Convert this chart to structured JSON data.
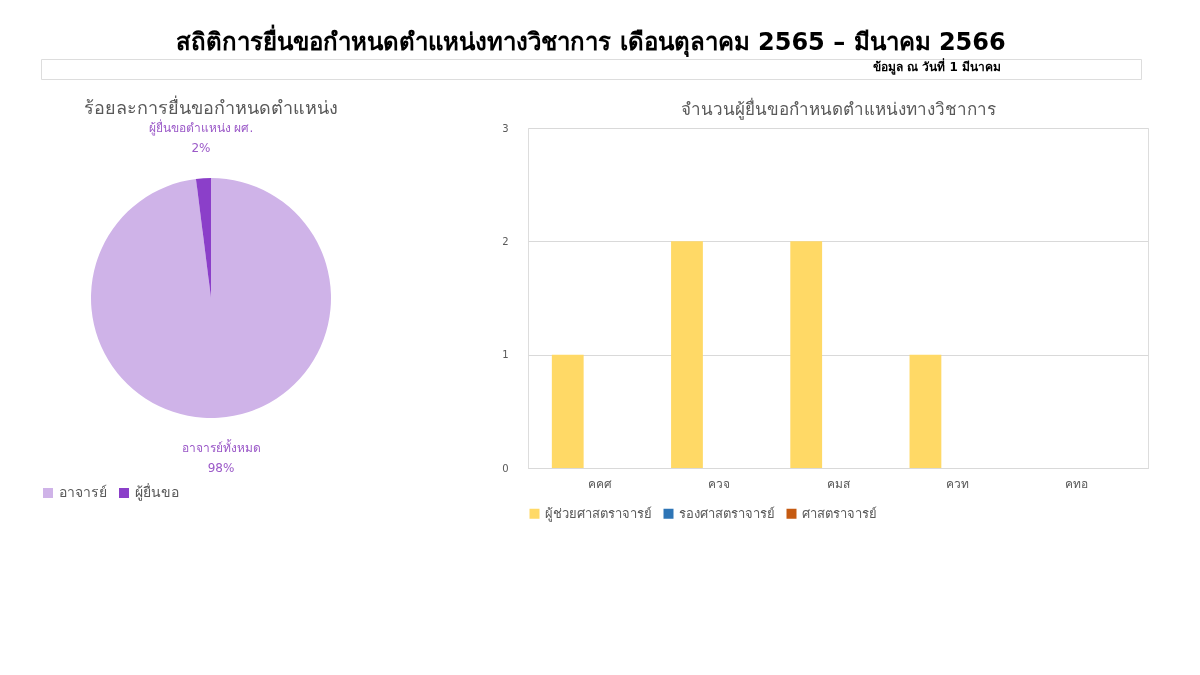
{
  "chart_data": [
    {
      "type": "other",
      "title": "สถิติการยื่นขอกำหนดตำแหน่งทางวิชาการ เดือนตุลาคม 2565 – มีนาคม 2566",
      "subtitle": "ข้อมูล ณ วันที่ 1 มีนาคม"
    },
    {
      "type": "pie",
      "title": "ร้อยละการยื่นขอกำหนดตำแหน่ง",
      "categories": [
        "อาจารย์",
        "ผู้ยื่นขอ"
      ],
      "values": [
        98,
        2
      ],
      "colors": [
        "#cfb3e8",
        "#8b3fc9"
      ],
      "value_labels": [
        "98%",
        "2%"
      ],
      "annotations": [
        "อาจารย์ทั้งหมด",
        "ผู้ยื่นขอตำแหน่ง ผศ."
      ],
      "legend": "bottom"
    },
    {
      "type": "bar",
      "title": "จำนวนผู้ยื่นขอกำหนดตำแหน่งทางวิชาการ",
      "categories": [
        "คคศ",
        "ควจ",
        "คมส",
        "ควท",
        "คทอ"
      ],
      "series": [
        {
          "name": "ผู้ช่วยศาสตราจารย์",
          "color": "#ffd966",
          "values": [
            1,
            2,
            2,
            1,
            0
          ]
        },
        {
          "name": "รองศาสตราจารย์",
          "color": "#2e75b6",
          "values": [
            0,
            0,
            0,
            0,
            0
          ]
        },
        {
          "name": "ศาสตราจารย์",
          "color": "#c55a11",
          "values": [
            0,
            0,
            0,
            0,
            0
          ]
        }
      ],
      "ylim": [
        0,
        3
      ],
      "yticks": [
        0,
        1,
        2,
        3
      ],
      "grid": "y",
      "legend": "bottom"
    }
  ]
}
